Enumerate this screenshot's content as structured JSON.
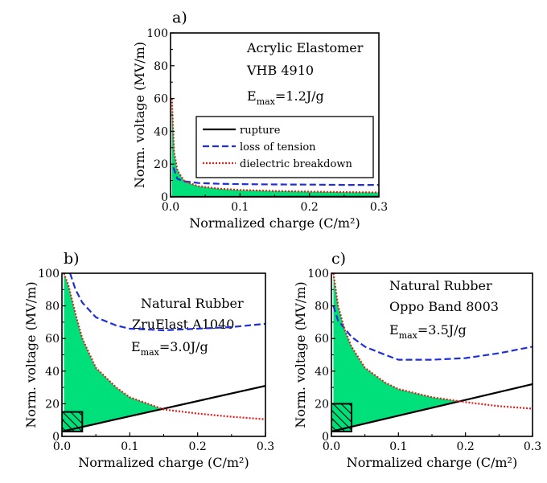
{
  "figure": {
    "panels": [
      {
        "label": "a)",
        "annotation": [
          "Acrylic Elastomer",
          "VHB 4910"
        ],
        "emax": {
          "base": "E",
          "sub": "max",
          "value": "=1.2J/g"
        }
      },
      {
        "label": "b)",
        "annotation": [
          "Natural Rubber",
          "ZruElast A1040"
        ],
        "emax": {
          "base": "E",
          "sub": "max",
          "value": "=3.0J/g"
        }
      },
      {
        "label": "c)",
        "annotation": [
          "Natural Rubber",
          "Oppo Band 8003"
        ],
        "emax": {
          "base": "E",
          "sub": "max",
          "value": "=3.5J/g"
        }
      }
    ],
    "legend": [
      "rupture",
      "loss of tension",
      "dielectric breakdown"
    ]
  },
  "colors": {
    "rupture": "#000000",
    "loss_of_tension": "#1f2fd8",
    "dielectric_breakdown": "#e0201c",
    "fill": "#00e07a"
  },
  "chart_data": [
    {
      "type": "line",
      "panel": "a)",
      "xlabel": "Normalized charge (C/m²)",
      "ylabel": "Norm. voltage (MV/m)",
      "xlim": [
        0,
        0.3
      ],
      "ylim": [
        0,
        100
      ],
      "xticks": [
        "0.0",
        "0.1",
        "0.2",
        "0.3"
      ],
      "yticks": [
        "0",
        "20",
        "40",
        "60",
        "80",
        "100"
      ],
      "grid": false,
      "legend_position": "right",
      "series": [
        {
          "name": "rupture",
          "style": "solid",
          "x": [
            0,
            0.3
          ],
          "y": [
            0,
            0.1
          ]
        },
        {
          "name": "loss of tension",
          "style": "dashed",
          "x": [
            0.004,
            0.01,
            0.02,
            0.04,
            0.07,
            0.1,
            0.15,
            0.2,
            0.25,
            0.3
          ],
          "y": [
            18,
            11,
            9.5,
            8.5,
            8,
            7.8,
            7.6,
            7.5,
            7.3,
            7.3
          ]
        },
        {
          "name": "dielectric breakdown",
          "style": "dotted",
          "x": [
            0.002,
            0.005,
            0.01,
            0.02,
            0.04,
            0.07,
            0.1,
            0.15,
            0.2,
            0.25,
            0.3
          ],
          "y": [
            60,
            28,
            16,
            9.5,
            6.5,
            5,
            4.2,
            3.6,
            3.2,
            2.9,
            2.7
          ]
        }
      ],
      "shaded_region": "area between rupture line and dielectric breakdown curve"
    },
    {
      "type": "line",
      "panel": "b)",
      "xlabel": "Normalized charge (C/m²)",
      "ylabel": "Norm. voltage (MV/m)",
      "xlim": [
        0,
        0.3
      ],
      "ylim": [
        0,
        100
      ],
      "xticks": [
        "0.0",
        "0.1",
        "0.2",
        "0.3"
      ],
      "yticks": [
        "0",
        "20",
        "40",
        "60",
        "80",
        "100"
      ],
      "grid": false,
      "series": [
        {
          "name": "rupture",
          "style": "solid",
          "x": [
            0,
            0.3
          ],
          "y": [
            3,
            31
          ]
        },
        {
          "name": "loss of tension",
          "style": "dashed",
          "x": [
            0.012,
            0.02,
            0.03,
            0.05,
            0.08,
            0.1,
            0.15,
            0.2,
            0.25,
            0.3
          ],
          "y": [
            100,
            90,
            82,
            73,
            68,
            66,
            65,
            66,
            67,
            69
          ]
        },
        {
          "name": "dielectric breakdown",
          "style": "dotted",
          "x": [
            0.003,
            0.01,
            0.02,
            0.03,
            0.05,
            0.08,
            0.1,
            0.15,
            0.2,
            0.25,
            0.3
          ],
          "y": [
            100,
            92,
            75,
            60,
            42,
            30,
            24,
            16.5,
            14,
            12,
            10.5
          ]
        }
      ],
      "shaded_region": "area between rupture line and dielectric breakdown curve",
      "hatched_box": {
        "x": [
          0,
          0.03
        ],
        "y": [
          3,
          15
        ]
      }
    },
    {
      "type": "line",
      "panel": "c)",
      "xlabel": "Normalized charge (C/m²)",
      "ylabel": "Norm. voltage (MV/m)",
      "xlim": [
        0,
        0.3
      ],
      "ylim": [
        0,
        100
      ],
      "xticks": [
        "0.0",
        "0.1",
        "0.2",
        "0.3"
      ],
      "yticks": [
        "0",
        "20",
        "40",
        "60",
        "80",
        "100"
      ],
      "grid": false,
      "series": [
        {
          "name": "rupture",
          "style": "solid",
          "x": [
            0,
            0.3
          ],
          "y": [
            3,
            32
          ]
        },
        {
          "name": "loss of tension",
          "style": "dashed",
          "x": [
            0.003,
            0.01,
            0.02,
            0.03,
            0.05,
            0.08,
            0.1,
            0.15,
            0.2,
            0.25,
            0.3
          ],
          "y": [
            80,
            71,
            66,
            61,
            55,
            50,
            47,
            47,
            48,
            51,
            55
          ]
        },
        {
          "name": "dielectric breakdown",
          "style": "dotted",
          "x": [
            0.003,
            0.01,
            0.02,
            0.03,
            0.05,
            0.08,
            0.1,
            0.15,
            0.2,
            0.25,
            0.3
          ],
          "y": [
            100,
            80,
            65,
            55,
            42,
            33,
            29,
            24,
            21,
            18.5,
            17
          ]
        }
      ],
      "shaded_region": "area between rupture line and dielectric breakdown curve",
      "hatched_box": {
        "x": [
          0,
          0.03
        ],
        "y": [
          3,
          20
        ]
      }
    }
  ]
}
